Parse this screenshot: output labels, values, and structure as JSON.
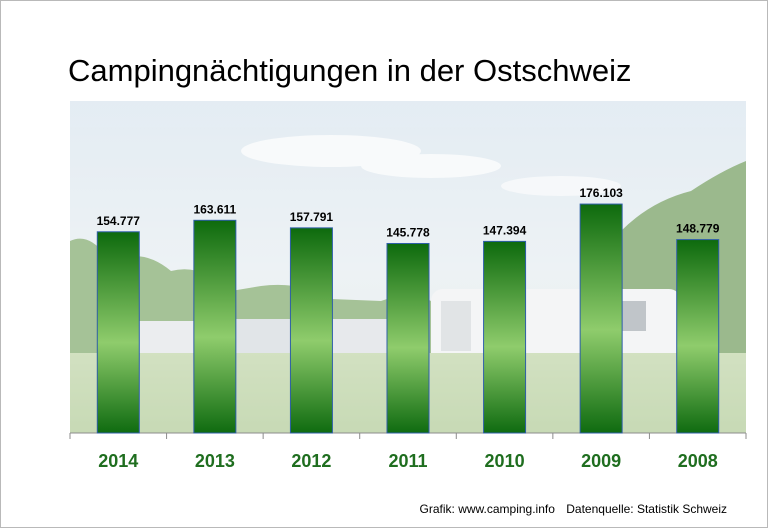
{
  "title": "Campingnächtigungen in der Ostschweiz",
  "footer": {
    "credit": "Grafik: www.camping.info",
    "source": "Datenquelle: Statistik Schweiz"
  },
  "colors": {
    "bar_dark": "#0d6a0d",
    "bar_light": "#9fd67d",
    "category_label": "#1f6e1f",
    "value_label": "#000000"
  },
  "chart_data": {
    "type": "bar",
    "title": "Campingnächtigungen in der Ostschweiz",
    "categories": [
      "2014",
      "2013",
      "2012",
      "2011",
      "2010",
      "2009",
      "2008"
    ],
    "values": [
      154777,
      163611,
      157791,
      145778,
      147394,
      176103,
      148779
    ],
    "value_labels": [
      "154.777",
      "163.611",
      "157.791",
      "145.778",
      "147.394",
      "176.103",
      "148.779"
    ],
    "xlabel": "",
    "ylabel": "",
    "ylim": [
      0,
      190000
    ],
    "grid": false,
    "legend": "none"
  }
}
